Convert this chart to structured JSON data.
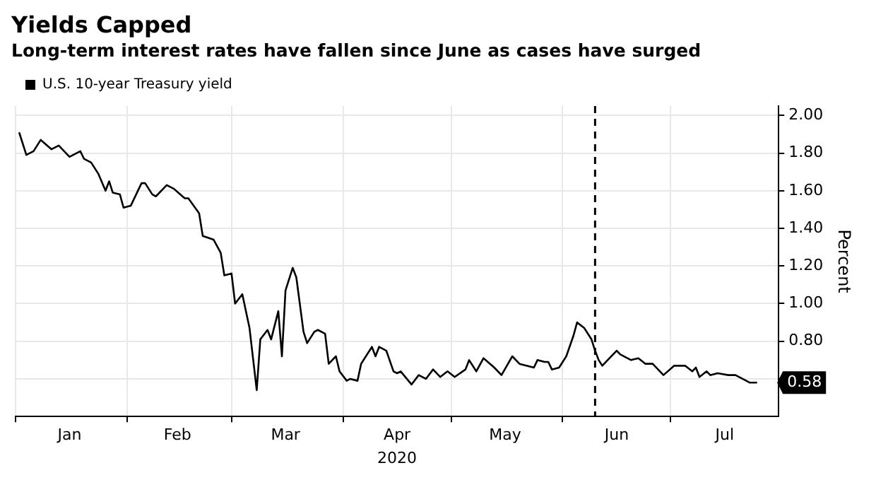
{
  "chart_data": {
    "type": "line",
    "title": "Yields Capped",
    "subtitle": "Long-term interest rates have fallen since June as cases have surged",
    "xlabel": "2020",
    "ylabel": "Percent",
    "x": [
      "2020-01-02",
      "2020-01-04",
      "2020-01-06",
      "2020-01-08",
      "2020-01-11",
      "2020-01-13",
      "2020-01-16",
      "2020-01-19",
      "2020-01-20",
      "2020-01-22",
      "2020-01-24",
      "2020-01-26",
      "2020-01-27",
      "2020-01-28",
      "2020-01-30",
      "2020-01-31",
      "2020-02-02",
      "2020-02-05",
      "2020-02-06",
      "2020-02-08",
      "2020-02-09",
      "2020-02-12",
      "2020-02-14",
      "2020-02-17",
      "2020-02-18",
      "2020-02-21",
      "2020-02-22",
      "2020-02-25",
      "2020-02-27",
      "2020-02-28",
      "2020-03-01",
      "2020-03-02",
      "2020-03-04",
      "2020-03-06",
      "2020-03-08",
      "2020-03-09",
      "2020-03-11",
      "2020-03-12",
      "2020-03-14",
      "2020-03-15",
      "2020-03-16",
      "2020-03-18",
      "2020-03-19",
      "2020-03-21",
      "2020-03-22",
      "2020-03-24",
      "2020-03-25",
      "2020-03-27",
      "2020-03-28",
      "2020-03-30",
      "2020-03-31",
      "2020-04-02",
      "2020-04-03",
      "2020-04-05",
      "2020-04-06",
      "2020-04-09",
      "2020-04-10",
      "2020-04-11",
      "2020-04-13",
      "2020-04-15",
      "2020-04-16",
      "2020-04-17",
      "2020-04-20",
      "2020-04-22",
      "2020-04-24",
      "2020-04-26",
      "2020-04-28",
      "2020-04-30",
      "2020-05-02",
      "2020-05-05",
      "2020-05-06",
      "2020-05-08",
      "2020-05-10",
      "2020-05-13",
      "2020-05-15",
      "2020-05-18",
      "2020-05-20",
      "2020-05-24",
      "2020-05-25",
      "2020-05-27",
      "2020-05-28",
      "2020-05-29",
      "2020-05-31",
      "2020-06-02",
      "2020-06-04",
      "2020-06-05",
      "2020-06-07",
      "2020-06-09",
      "2020-06-10",
      "2020-06-11",
      "2020-06-12",
      "2020-06-16",
      "2020-06-17",
      "2020-06-20",
      "2020-06-22",
      "2020-06-24",
      "2020-06-26",
      "2020-06-29",
      "2020-07-02",
      "2020-07-04",
      "2020-07-05",
      "2020-07-07",
      "2020-07-08",
      "2020-07-09",
      "2020-07-11",
      "2020-07-12",
      "2020-07-14",
      "2020-07-17",
      "2020-07-19",
      "2020-07-22",
      "2020-07-23",
      "2020-07-25"
    ],
    "series": [
      {
        "name": "U.S. 10-year Treasury yield",
        "color": "#000000",
        "values": [
          1.91,
          1.79,
          1.81,
          1.87,
          1.82,
          1.84,
          1.78,
          1.81,
          1.77,
          1.75,
          1.69,
          1.6,
          1.65,
          1.59,
          1.58,
          1.51,
          1.52,
          1.64,
          1.64,
          1.58,
          1.57,
          1.63,
          1.61,
          1.56,
          1.56,
          1.48,
          1.36,
          1.34,
          1.27,
          1.15,
          1.16,
          1.0,
          1.05,
          0.87,
          0.54,
          0.81,
          0.86,
          0.81,
          0.96,
          0.72,
          1.07,
          1.19,
          1.14,
          0.85,
          0.79,
          0.85,
          0.86,
          0.84,
          0.68,
          0.72,
          0.64,
          0.59,
          0.6,
          0.59,
          0.68,
          0.77,
          0.72,
          0.77,
          0.75,
          0.64,
          0.63,
          0.64,
          0.57,
          0.62,
          0.6,
          0.65,
          0.61,
          0.64,
          0.61,
          0.65,
          0.7,
          0.64,
          0.71,
          0.66,
          0.62,
          0.72,
          0.68,
          0.66,
          0.7,
          0.69,
          0.69,
          0.65,
          0.66,
          0.72,
          0.83,
          0.9,
          0.87,
          0.81,
          0.75,
          0.7,
          0.67,
          0.75,
          0.73,
          0.7,
          0.71,
          0.68,
          0.68,
          0.62,
          0.67,
          0.67,
          0.67,
          0.64,
          0.66,
          0.61,
          0.64,
          0.62,
          0.63,
          0.62,
          0.62,
          0.59,
          0.58,
          0.58
        ]
      }
    ],
    "xlim": [
      "2020-01-01",
      "2020-07-31"
    ],
    "xticks": [
      {
        "value": "2020-01-01",
        "label": null
      },
      {
        "value": "2020-01-16",
        "label": "Jan"
      },
      {
        "value": "2020-02-01",
        "label": null
      },
      {
        "value": "2020-02-15",
        "label": "Feb"
      },
      {
        "value": "2020-03-01",
        "label": null
      },
      {
        "value": "2020-03-16",
        "label": "Mar"
      },
      {
        "value": "2020-04-01",
        "label": null
      },
      {
        "value": "2020-04-16",
        "label": "Apr"
      },
      {
        "value": "2020-05-01",
        "label": null
      },
      {
        "value": "2020-05-16",
        "label": "May"
      },
      {
        "value": "2020-06-01",
        "label": null
      },
      {
        "value": "2020-06-16",
        "label": "Jun"
      },
      {
        "value": "2020-07-01",
        "label": null
      },
      {
        "value": "2020-07-16",
        "label": "Jul"
      }
    ],
    "ylim": [
      0.4,
      2.05
    ],
    "yticks": [
      {
        "value": 0.6,
        "label": null
      },
      {
        "value": 0.8,
        "label": "0.80"
      },
      {
        "value": 1.0,
        "label": "1.00"
      },
      {
        "value": 1.2,
        "label": "1.20"
      },
      {
        "value": 1.4,
        "label": "1.40"
      },
      {
        "value": 1.6,
        "label": "1.60"
      },
      {
        "value": 1.8,
        "label": "1.80"
      },
      {
        "value": 2.0,
        "label": "2.00"
      }
    ],
    "ref_lines": [
      {
        "axis": "x",
        "value": "2020-06-10",
        "color": "#000000",
        "line_style": "dashed"
      }
    ],
    "annotations": [
      {
        "text": "0.58",
        "x": "2020-07-25",
        "y": 0.58
      }
    ],
    "grid": true,
    "legend": "top left",
    "marker": "none",
    "line_style": "solid"
  }
}
